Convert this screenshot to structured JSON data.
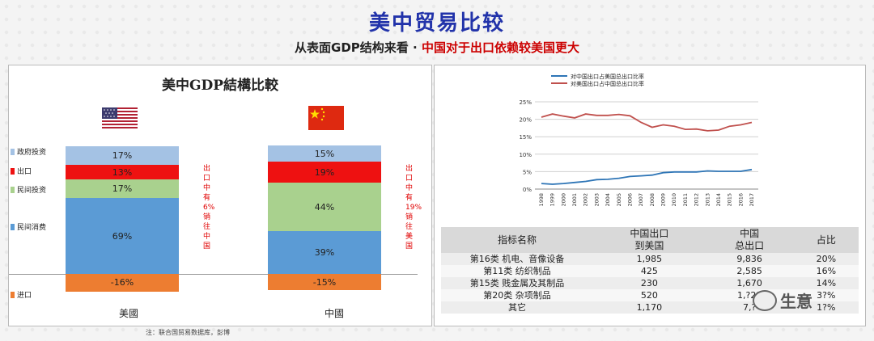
{
  "header": {
    "title": "美中贸易比较",
    "subtitle_plain": "从表面GDP结构来看 · ",
    "subtitle_highlight": "中国对于出口依赖较美国更大"
  },
  "left": {
    "title": "美中GDP結構比較",
    "legend": [
      {
        "label": "政府投资",
        "color": "#a4c2e4"
      },
      {
        "label": "出口",
        "color": "#ee1111"
      },
      {
        "label": "民间投资",
        "color": "#a9d18e"
      },
      {
        "label": "民间消费",
        "color": "#5b9bd5"
      },
      {
        "label": "进口",
        "color": "#ed7d31"
      }
    ],
    "countries": [
      "美國",
      "中國"
    ],
    "flag_icons": [
      "us-flag-icon",
      "china-flag-icon"
    ],
    "notes": [
      [
        "出",
        "口",
        "中",
        "有",
        "6%",
        "销",
        "往",
        "中",
        "国"
      ],
      [
        "出",
        "口",
        "中",
        "有",
        "19%",
        "销",
        "往",
        "美",
        "国"
      ]
    ],
    "source": "注：联合国贸易数据库，彭博"
  },
  "chart_data": [
    {
      "type": "bar",
      "title": "美中GDP結構比較",
      "categories": [
        "美國",
        "中國"
      ],
      "series": [
        {
          "name": "政府投资",
          "values": [
            17,
            15
          ],
          "labels": [
            "17%",
            "15%"
          ]
        },
        {
          "name": "出口",
          "values": [
            13,
            19
          ],
          "labels": [
            "13%",
            "19%"
          ]
        },
        {
          "name": "民间投资",
          "values": [
            17,
            44
          ],
          "labels": [
            "17%",
            "44%"
          ]
        },
        {
          "name": "民间消费",
          "values": [
            69,
            39
          ],
          "labels": [
            "69%",
            "39%"
          ]
        },
        {
          "name": "进口",
          "values": [
            -16,
            -15
          ],
          "labels": [
            "-16%",
            "-15%"
          ]
        }
      ],
      "stacked": true
    },
    {
      "type": "line",
      "x": [
        "1998",
        "1999",
        "2000",
        "2001",
        "2002",
        "2003",
        "2004",
        "2005",
        "2006",
        "2007",
        "2008",
        "2009",
        "2010",
        "2011",
        "2012",
        "2013",
        "2014",
        "2015",
        "2016",
        "2017"
      ],
      "series": [
        {
          "name": "对中国出口占美国总出口比率",
          "color": "#2e75b6",
          "values": [
            1.6,
            1.4,
            1.6,
            1.9,
            2.2,
            2.7,
            2.8,
            3.1,
            3.6,
            3.8,
            4.0,
            4.7,
            4.9,
            4.9,
            4.9,
            5.2,
            5.1,
            5.1,
            5.1,
            5.6
          ]
        },
        {
          "name": "对美国出口占中国总出口比率",
          "color": "#c0504d",
          "values": [
            20.6,
            21.5,
            20.9,
            20.4,
            21.5,
            21.1,
            21.1,
            21.4,
            21.0,
            19.1,
            17.7,
            18.4,
            18.0,
            17.1,
            17.2,
            16.7,
            16.9,
            18.0,
            18.4,
            19.1
          ]
        }
      ],
      "ylim": [
        0,
        25
      ],
      "yticks": [
        "0%",
        "5%",
        "10%",
        "15%",
        "20%",
        "25%"
      ],
      "legend": "top-left"
    }
  ],
  "table": {
    "headers": [
      "指标名称",
      "中国出口\n到美国",
      "中国\n总出口",
      "占比"
    ],
    "rows": [
      [
        "第16类 机电、音像设备",
        "1,985",
        "9,836",
        "20%"
      ],
      [
        "第11类 纺织制品",
        "425",
        "2,585",
        "16%"
      ],
      [
        "第15类 贱金属及其制品",
        "230",
        "1,670",
        "14%"
      ],
      [
        "第20类 杂项制品",
        "520",
        "1,?21",
        "3?%"
      ],
      [
        "其它",
        "1,170",
        "7,?",
        "1?%"
      ]
    ]
  },
  "watermark": {
    "text": "生意",
    "icon": "wechat-icon"
  }
}
